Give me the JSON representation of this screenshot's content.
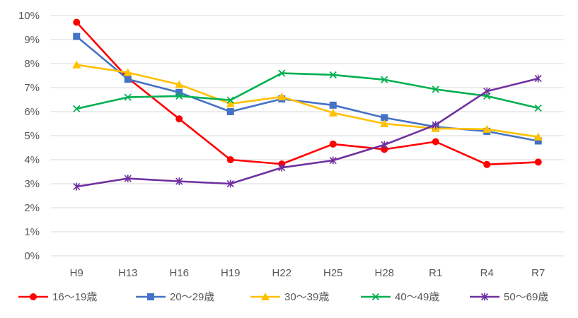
{
  "chart_data": {
    "type": "line",
    "categories": [
      "H9",
      "H13",
      "H16",
      "H19",
      "H22",
      "H25",
      "H28",
      "R1",
      "R4",
      "R7"
    ],
    "ylim": [
      0,
      10
    ],
    "yticks": [
      "0%",
      "1%",
      "2%",
      "3%",
      "4%",
      "5%",
      "6%",
      "7%",
      "8%",
      "9%",
      "10%"
    ],
    "grid": true,
    "legend_position": "bottom",
    "series": [
      {
        "name": "16～19歳",
        "color": "#ff0000",
        "marker": "circle",
        "values": [
          9.72,
          7.4,
          5.7,
          4.0,
          3.82,
          4.65,
          4.43,
          4.75,
          3.8,
          3.9
        ]
      },
      {
        "name": "20～29歳",
        "color": "#4472c4",
        "marker": "square",
        "values": [
          9.13,
          7.35,
          6.8,
          6.0,
          6.53,
          6.27,
          5.75,
          5.37,
          5.18,
          4.78
        ]
      },
      {
        "name": "30～39歳",
        "color": "#ffc000",
        "marker": "triangle",
        "values": [
          7.95,
          7.63,
          7.13,
          6.33,
          6.62,
          5.95,
          5.5,
          5.3,
          5.27,
          4.95
        ]
      },
      {
        "name": "40～49歳",
        "color": "#00b050",
        "marker": "x",
        "values": [
          6.12,
          6.6,
          6.65,
          6.48,
          7.6,
          7.53,
          7.33,
          6.93,
          6.65,
          6.15
        ]
      },
      {
        "name": "50～69歳",
        "color": "#7030a0",
        "marker": "star",
        "values": [
          2.88,
          3.22,
          3.1,
          3.0,
          3.67,
          3.97,
          4.62,
          5.45,
          6.85,
          7.38
        ]
      }
    ]
  }
}
